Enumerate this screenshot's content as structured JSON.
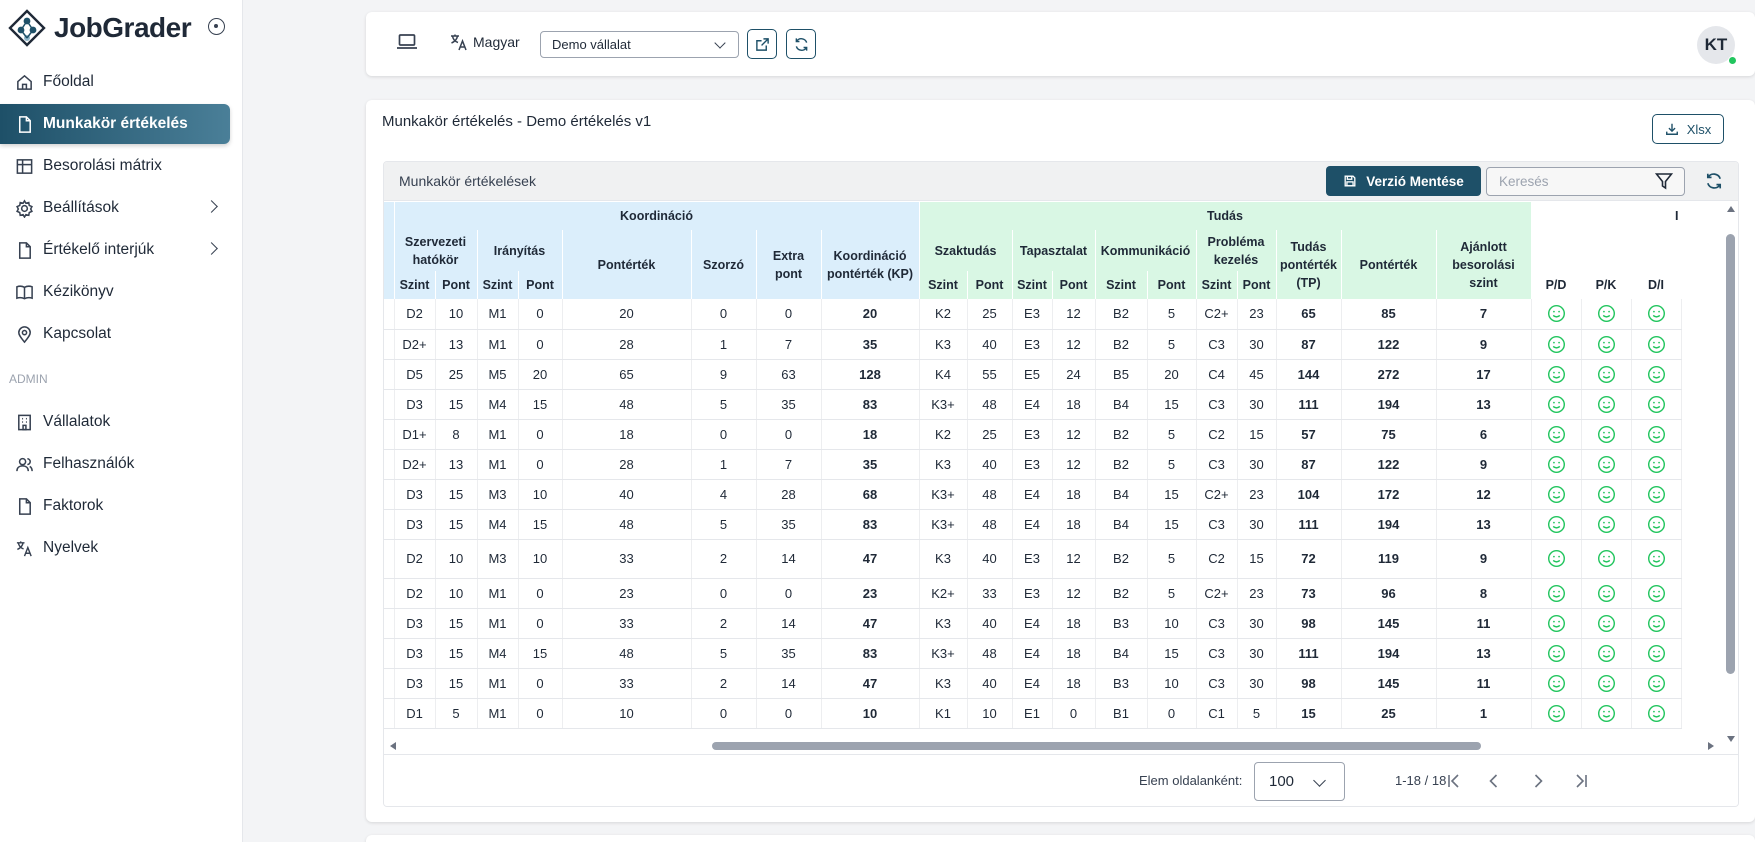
{
  "app": {
    "name": "JobGrader",
    "accent": "#1e5068",
    "success": "#22c55e"
  },
  "sidebar": {
    "items": [
      {
        "label": "Főoldal",
        "icon": "home-icon"
      },
      {
        "label": "Munkakör értékelés",
        "icon": "document-icon",
        "active": true
      },
      {
        "label": "Besorolási mátrix",
        "icon": "table-icon"
      },
      {
        "label": "Beállítások",
        "icon": "gear-icon",
        "submenu": true
      },
      {
        "label": "Értékelő interjúk",
        "icon": "document-icon",
        "submenu": true
      },
      {
        "label": "Kézikönyv",
        "icon": "book-icon"
      },
      {
        "label": "Kapcsolat",
        "icon": "location-icon"
      }
    ],
    "admin_heading": "ADMIN",
    "admin_items": [
      {
        "label": "Vállalatok",
        "icon": "building-icon"
      },
      {
        "label": "Felhasználók",
        "icon": "users-icon"
      },
      {
        "label": "Faktorok",
        "icon": "document-icon"
      },
      {
        "label": "Nyelvek",
        "icon": "translate-icon"
      }
    ]
  },
  "topbar": {
    "language": "Magyar",
    "company_select": "Demo vállalat",
    "avatar_initials": "KT"
  },
  "page": {
    "title": "Munkakör értékelés - Demo értékelés v1",
    "export_label": "Xlsx",
    "panel_title": "Munkakör értékelések",
    "save_version_label": "Verzió Mentése",
    "search_placeholder": "Keresés"
  },
  "table": {
    "groups": {
      "koordinacio": "Koordináció",
      "tudas": "Tudás"
    },
    "sub": {
      "szervezeti": "Szervezeti hatókör",
      "iranyitas": "Irányítás",
      "ponterek_k": "Pontérték",
      "szorzo": "Szorzó",
      "extra": "Extra pont",
      "kp": "Koordináció pontérték (KP)",
      "szaktudas": "Szaktudás",
      "tapasztalat": "Tapasztalat",
      "kommunikacio": "Kommunikáció",
      "problema": "Probléma kezelés",
      "tp": "Tudás pontérték (TP)",
      "ponterek": "Pontérték",
      "ajanlott": "Ajánlott besorolási szint",
      "cut": "I"
    },
    "leaf": {
      "szint": "Szint",
      "pont": "Pont",
      "pd": "P/D",
      "pk": "P/K",
      "di": "D/I"
    },
    "rows": [
      [
        "D2",
        "10",
        "M1",
        "0",
        "20",
        "0",
        "0",
        "20",
        "K2",
        "25",
        "E3",
        "12",
        "B2",
        "5",
        "C2+",
        "23",
        "65",
        "85",
        "7"
      ],
      [
        "D2+",
        "13",
        "M1",
        "0",
        "28",
        "1",
        "7",
        "35",
        "K3",
        "40",
        "E3",
        "12",
        "B2",
        "5",
        "C3",
        "30",
        "87",
        "122",
        "9"
      ],
      [
        "D5",
        "25",
        "M5",
        "20",
        "65",
        "9",
        "63",
        "128",
        "K4",
        "55",
        "E5",
        "24",
        "B5",
        "20",
        "C4",
        "45",
        "144",
        "272",
        "17"
      ],
      [
        "D3",
        "15",
        "M4",
        "15",
        "48",
        "5",
        "35",
        "83",
        "K3+",
        "48",
        "E4",
        "18",
        "B4",
        "15",
        "C3",
        "30",
        "111",
        "194",
        "13"
      ],
      [
        "D1+",
        "8",
        "M1",
        "0",
        "18",
        "0",
        "0",
        "18",
        "K2",
        "25",
        "E3",
        "12",
        "B2",
        "5",
        "C2",
        "15",
        "57",
        "75",
        "6"
      ],
      [
        "D2+",
        "13",
        "M1",
        "0",
        "28",
        "1",
        "7",
        "35",
        "K3",
        "40",
        "E3",
        "12",
        "B2",
        "5",
        "C3",
        "30",
        "87",
        "122",
        "9"
      ],
      [
        "D3",
        "15",
        "M3",
        "10",
        "40",
        "4",
        "28",
        "68",
        "K3+",
        "48",
        "E4",
        "18",
        "B4",
        "15",
        "C2+",
        "23",
        "104",
        "172",
        "12"
      ],
      [
        "D3",
        "15",
        "M4",
        "15",
        "48",
        "5",
        "35",
        "83",
        "K3+",
        "48",
        "E4",
        "18",
        "B4",
        "15",
        "C3",
        "30",
        "111",
        "194",
        "13"
      ],
      [
        "D2",
        "10",
        "M3",
        "10",
        "33",
        "2",
        "14",
        "47",
        "K3",
        "40",
        "E3",
        "12",
        "B2",
        "5",
        "C2",
        "15",
        "72",
        "119",
        "9"
      ],
      [
        "D2",
        "10",
        "M1",
        "0",
        "23",
        "0",
        "0",
        "23",
        "K2+",
        "33",
        "E3",
        "12",
        "B2",
        "5",
        "C2+",
        "23",
        "73",
        "96",
        "8"
      ],
      [
        "D3",
        "15",
        "M1",
        "0",
        "33",
        "2",
        "14",
        "47",
        "K3",
        "40",
        "E4",
        "18",
        "B3",
        "10",
        "C3",
        "30",
        "98",
        "145",
        "11"
      ],
      [
        "D3",
        "15",
        "M4",
        "15",
        "48",
        "5",
        "35",
        "83",
        "K3+",
        "48",
        "E4",
        "18",
        "B4",
        "15",
        "C3",
        "30",
        "111",
        "194",
        "13"
      ],
      [
        "D3",
        "15",
        "M1",
        "0",
        "33",
        "2",
        "14",
        "47",
        "K3",
        "40",
        "E4",
        "18",
        "B3",
        "10",
        "C3",
        "30",
        "98",
        "145",
        "11"
      ],
      [
        "D1",
        "5",
        "M1",
        "0",
        "10",
        "0",
        "0",
        "10",
        "K1",
        "10",
        "E1",
        "0",
        "B1",
        "0",
        "C1",
        "5",
        "15",
        "25",
        "1"
      ]
    ]
  },
  "pager": {
    "per_page_label": "Elem oldalanként:",
    "per_page_value": "100",
    "range": "1-18 / 18"
  }
}
